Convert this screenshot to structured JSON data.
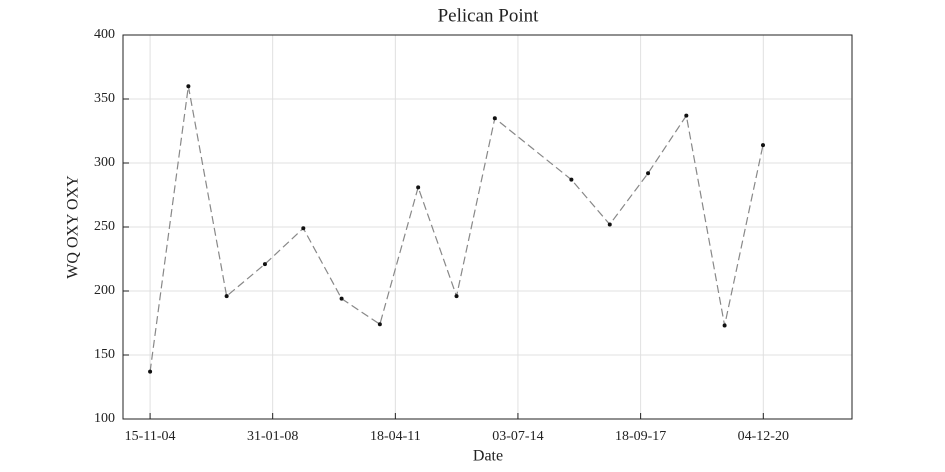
{
  "chart_data": {
    "type": "line",
    "title": "Pelican Point",
    "xlabel": "Date",
    "ylabel": "WQ OXY OXY",
    "x": [
      "2004-11-15",
      "2005-11-16",
      "2006-11-17",
      "2007-11-18",
      "2008-11-19",
      "2009-11-20",
      "2010-11-21",
      "2011-11-22",
      "2012-11-23",
      "2013-11-24",
      "2015-11-26",
      "2016-11-27",
      "2017-11-28",
      "2018-11-29",
      "2019-11-30",
      "2020-12-01"
    ],
    "series": [
      {
        "color": "#888888",
        "values": [
          137,
          360,
          196,
          221,
          249,
          194,
          174,
          281,
          196,
          335,
          287,
          252,
          292,
          337,
          173,
          314
        ]
      }
    ],
    "xlim": [
      "2004-03-01",
      "2023-04-01"
    ],
    "xticks": [
      {
        "value": "2004-11-15",
        "label": "15-11-04"
      },
      {
        "value": "2008-01-31",
        "label": "31-01-08"
      },
      {
        "value": "2011-04-18",
        "label": "18-04-11"
      },
      {
        "value": "2014-07-03",
        "label": "03-07-14"
      },
      {
        "value": "2017-09-18",
        "label": "18-09-17"
      },
      {
        "value": "2020-12-04",
        "label": "04-12-20"
      }
    ],
    "ylim": [
      100,
      400
    ],
    "yticks": [
      100,
      150,
      200,
      250,
      300,
      350,
      400
    ],
    "grid": true
  }
}
